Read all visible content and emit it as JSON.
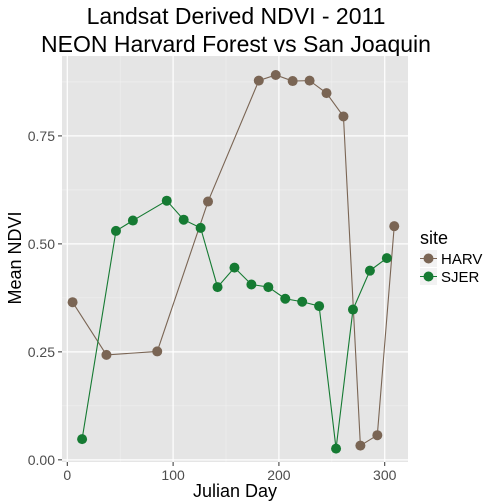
{
  "chart_data": {
    "type": "line",
    "title": [
      "Landsat Derived NDVI - 2011",
      "NEON Harvard Forest vs San Joaquin"
    ],
    "xlabel": "Julian Day",
    "ylabel": "Mean NDVI",
    "xlim": [
      -5,
      322
    ],
    "ylim": [
      -0.005,
      0.935
    ],
    "x_ticks": [
      0,
      100,
      200,
      300
    ],
    "x_tick_labels": [
      "0",
      "100",
      "200",
      "300"
    ],
    "y_ticks": [
      0.0,
      0.25,
      0.5,
      0.75
    ],
    "y_tick_labels": [
      "0.00",
      "0.25",
      "0.50",
      "0.75"
    ],
    "grid": true,
    "legend": {
      "title": "site",
      "placement": "right"
    },
    "series": [
      {
        "name": "HARV",
        "color": "#7a6554",
        "points": [
          [
            5,
            0.365
          ],
          [
            37,
            0.243
          ],
          [
            85,
            0.251
          ],
          [
            133,
            0.598
          ],
          [
            181,
            0.878
          ],
          [
            197,
            0.891
          ],
          [
            213,
            0.877
          ],
          [
            229,
            0.878
          ],
          [
            245,
            0.849
          ],
          [
            261,
            0.795
          ],
          [
            277,
            0.033
          ],
          [
            293,
            0.057
          ],
          [
            309,
            0.541
          ]
        ]
      },
      {
        "name": "SJER",
        "color": "#157a32",
        "points": [
          [
            14,
            0.048
          ],
          [
            46,
            0.53
          ],
          [
            62,
            0.554
          ],
          [
            94,
            0.6
          ],
          [
            110,
            0.556
          ],
          [
            126,
            0.537
          ],
          [
            142,
            0.4
          ],
          [
            158,
            0.445
          ],
          [
            174,
            0.406
          ],
          [
            190,
            0.4
          ],
          [
            206,
            0.373
          ],
          [
            222,
            0.366
          ],
          [
            238,
            0.356
          ],
          [
            254,
            0.026
          ],
          [
            270,
            0.348
          ],
          [
            286,
            0.438
          ],
          [
            302,
            0.467
          ]
        ]
      }
    ]
  },
  "colors": {
    "panel_background": "#e5e5e5",
    "grid_major": "#ffffff",
    "grid_minor": "#f0f0f0",
    "tick_mark": "#333333",
    "legend_key_background": "#f2f2f2"
  }
}
